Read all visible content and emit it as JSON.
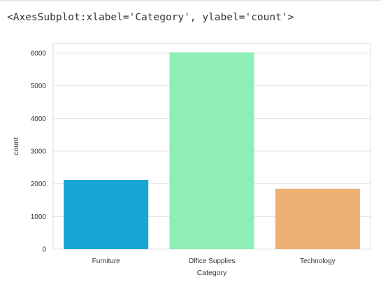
{
  "output_repr": "<AxesSubplot:xlabel='Category', ylabel='count'>",
  "chart_data": {
    "type": "bar",
    "categories": [
      "Furniture",
      "Office Supplies",
      "Technology"
    ],
    "values": [
      2121,
      6026,
      1847
    ],
    "colors": [
      "#1aa6d4",
      "#8fedb6",
      "#eeb173"
    ],
    "xlabel": "Category",
    "ylabel": "count",
    "ylim": [
      0,
      6300
    ],
    "yticks": [
      0,
      1000,
      2000,
      3000,
      4000,
      5000,
      6000
    ],
    "grid": true,
    "style": "seaborn whitegrid"
  }
}
